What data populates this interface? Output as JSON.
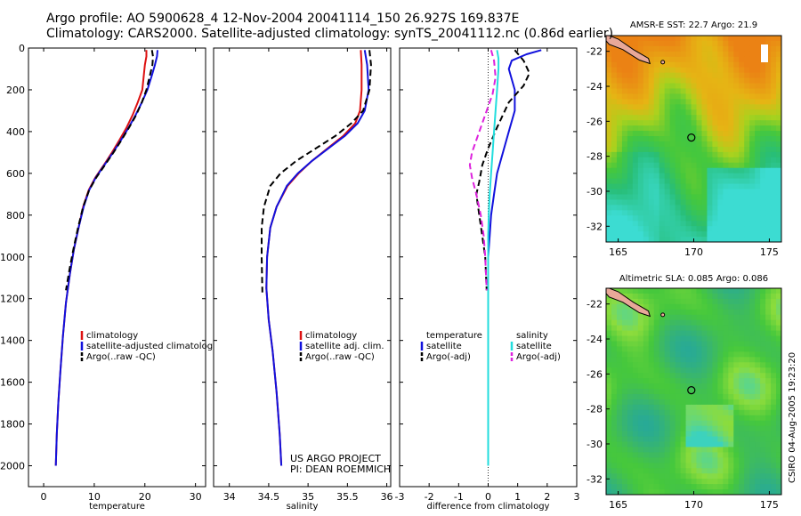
{
  "header": {
    "line1": "Argo profile: AO 5900628_4 12-Nov-2004 20041114_150 26.927S 169.837E",
    "line2": "Climatology: CARS2000. Satellite-adjusted climatology: synTS_20041112.nc (0.86d earlier)"
  },
  "credits": {
    "project": "US ARGO PROJECT",
    "pi": "PI: DEAN ROEMMICH",
    "stamp": "CSIRO 04-Aug-2005 19:23:20"
  },
  "colors": {
    "climatology": "#dd1111",
    "satellite": "#1111dd",
    "argo": "#000000",
    "salinity_sat": "#22dddd",
    "salinity_argo": "#dd22dd"
  },
  "chart_data": [
    {
      "id": "temperature",
      "type": "line",
      "xlabel": "temperature",
      "ylabel": "",
      "xlim": [
        -3,
        32
      ],
      "ylim": [
        0,
        2100
      ],
      "y_reversed": true,
      "xticks": [
        0,
        10,
        20,
        30
      ],
      "yticks": [
        0,
        200,
        400,
        600,
        800,
        1000,
        1200,
        1400,
        1600,
        1800,
        2000
      ],
      "legend": {
        "position": "lower-right",
        "entries": [
          "climatology",
          "satellite-adjusted climatology",
          "Argo(..raw -QC)"
        ]
      },
      "series": [
        {
          "name": "climatology",
          "color": "#dd1111",
          "dash": "solid",
          "x": [
            20.3,
            20.3,
            20.0,
            19.8,
            19.5,
            18.6,
            17.6,
            16.4,
            15.0,
            13.5,
            11.9,
            10.2,
            8.9,
            7.8,
            6.9,
            6.0,
            5.2,
            4.4,
            3.8,
            3.3,
            2.9,
            2.6,
            2.4
          ],
          "y": [
            10,
            40,
            80,
            130,
            200,
            260,
            320,
            380,
            440,
            500,
            560,
            620,
            680,
            760,
            860,
            960,
            1080,
            1220,
            1380,
            1550,
            1700,
            1850,
            2000
          ]
        },
        {
          "name": "satellite-adjusted climatology",
          "color": "#1111dd",
          "dash": "solid",
          "x": [
            22.5,
            22.4,
            22.0,
            21.4,
            20.5,
            19.4,
            18.2,
            16.8,
            15.3,
            13.7,
            12.0,
            10.3,
            9.0,
            7.9,
            6.9,
            6.0,
            5.2,
            4.4,
            3.8,
            3.3,
            2.9,
            2.6,
            2.4
          ],
          "y": [
            10,
            40,
            80,
            130,
            200,
            260,
            320,
            380,
            440,
            500,
            560,
            620,
            680,
            760,
            860,
            960,
            1080,
            1220,
            1380,
            1550,
            1700,
            1850,
            2000
          ]
        },
        {
          "name": "Argo(..raw -QC)",
          "color": "#000000",
          "dash": "dashed",
          "x": [
            21.4,
            21.6,
            21.5,
            21.0,
            20.3,
            19.4,
            18.3,
            16.9,
            15.4,
            13.8,
            12.1,
            10.4,
            9.0,
            7.8,
            6.8,
            5.9,
            5.1,
            4.4
          ],
          "y": [
            10,
            40,
            80,
            130,
            200,
            260,
            320,
            380,
            440,
            500,
            560,
            620,
            680,
            760,
            860,
            960,
            1060,
            1160
          ]
        }
      ]
    },
    {
      "id": "salinity",
      "type": "line",
      "xlabel": "salinity",
      "ylabel": "",
      "xlim": [
        33.8,
        36.05
      ],
      "ylim": [
        0,
        2100
      ],
      "y_reversed": true,
      "xticks": [
        34,
        34.5,
        35,
        35.5,
        36
      ],
      "xtick_labels": [
        "34",
        "34.5",
        "35",
        "35.5",
        "36"
      ],
      "legend": {
        "position": "lower-right",
        "entries": [
          "climatology",
          "satellite adj. clim.",
          "Argo(..raw -QC)"
        ]
      },
      "series": [
        {
          "name": "climatology",
          "color": "#dd1111",
          "dash": "solid",
          "x": [
            35.67,
            35.68,
            35.68,
            35.66,
            35.6,
            35.45,
            35.25,
            35.05,
            34.88,
            34.74,
            34.6,
            34.52,
            34.48,
            34.47,
            34.5,
            34.55,
            34.6,
            34.64,
            34.66
          ],
          "y": [
            10,
            80,
            200,
            300,
            360,
            420,
            480,
            540,
            600,
            660,
            760,
            860,
            1000,
            1150,
            1300,
            1450,
            1650,
            1850,
            2000
          ]
        },
        {
          "name": "satellite adj. clim.",
          "color": "#1111dd",
          "dash": "solid",
          "x": [
            35.72,
            35.75,
            35.77,
            35.72,
            35.63,
            35.47,
            35.26,
            35.05,
            34.87,
            34.73,
            34.6,
            34.52,
            34.48,
            34.47,
            34.5,
            34.55,
            34.6,
            34.64,
            34.66
          ],
          "y": [
            10,
            80,
            200,
            300,
            360,
            420,
            480,
            540,
            600,
            660,
            760,
            860,
            1000,
            1150,
            1300,
            1450,
            1650,
            1850,
            2000
          ]
        },
        {
          "name": "Argo(..raw -QC)",
          "color": "#000000",
          "dash": "dashed",
          "x": [
            35.78,
            35.8,
            35.78,
            35.7,
            35.55,
            35.35,
            35.1,
            34.85,
            34.65,
            34.52,
            34.44,
            34.41,
            34.41,
            34.42
          ],
          "y": [
            10,
            80,
            200,
            300,
            360,
            420,
            480,
            540,
            600,
            660,
            760,
            860,
            1000,
            1170
          ]
        }
      ]
    },
    {
      "id": "difference",
      "type": "line",
      "xlabel": "difference from climatology",
      "ylabel": "",
      "xlim": [
        -3,
        3
      ],
      "ylim": [
        0,
        2100
      ],
      "y_reversed": true,
      "xticks": [
        -3,
        -2,
        -1,
        0,
        1,
        2,
        3
      ],
      "legend": {
        "position": "lower-center",
        "entries": [
          "temperature",
          "satellite",
          "Argo(-adj)",
          "salinity",
          "satellite",
          "Argo(-adj)"
        ]
      },
      "series": [
        {
          "name": "temperature satellite",
          "color": "#1111dd",
          "dash": "solid",
          "x": [
            1.8,
            1.3,
            0.8,
            0.7,
            0.9,
            0.9,
            0.7,
            0.5,
            0.3,
            0.2,
            0.1,
            0.05,
            0.0,
            0.0,
            0.0,
            0.0,
            0.0
          ],
          "y": [
            10,
            30,
            60,
            100,
            200,
            300,
            400,
            500,
            600,
            700,
            800,
            900,
            1000,
            1200,
            1500,
            1800,
            2000
          ]
        },
        {
          "name": "temperature Argo(-adj)",
          "color": "#000000",
          "dash": "dashed",
          "x": [
            0.9,
            1.2,
            1.4,
            1.2,
            0.7,
            0.3,
            0.0,
            -0.2,
            -0.3,
            -0.4,
            -0.3,
            -0.2,
            -0.1,
            -0.05
          ],
          "y": [
            10,
            60,
            120,
            180,
            260,
            380,
            480,
            560,
            640,
            700,
            800,
            900,
            1000,
            1160
          ]
        },
        {
          "name": "salinity satellite",
          "color": "#22dddd",
          "dash": "solid",
          "x": [
            0.3,
            0.35,
            0.35,
            0.3,
            0.25,
            0.2,
            0.15,
            0.1,
            0.05,
            0.02,
            0.0,
            0.0,
            0.0,
            0.0,
            0.0,
            0.0
          ],
          "y": [
            10,
            50,
            100,
            200,
            300,
            400,
            500,
            600,
            700,
            800,
            900,
            1000,
            1200,
            1500,
            1800,
            2000
          ]
        },
        {
          "name": "salinity Argo(-adj)",
          "color": "#dd22dd",
          "dash": "dashed",
          "x": [
            0.1,
            0.2,
            0.25,
            0.15,
            -0.1,
            -0.35,
            -0.55,
            -0.62,
            -0.55,
            -0.4,
            -0.25,
            -0.15,
            -0.1,
            -0.05
          ],
          "y": [
            10,
            60,
            140,
            220,
            320,
            420,
            500,
            560,
            620,
            700,
            800,
            900,
            1000,
            1160
          ]
        }
      ]
    },
    {
      "id": "sst-map",
      "type": "heatmap",
      "title": "AMSR-E SST: 22.7 Argo: 21.9",
      "xlim": [
        164.2,
        175.8
      ],
      "ylim": [
        -32.9,
        -21.1
      ],
      "xticks": [
        165,
        170,
        175
      ],
      "yticks": [
        -22,
        -24,
        -26,
        -28,
        -30,
        -32
      ],
      "marker": {
        "lon": 169.84,
        "lat": -26.93
      }
    },
    {
      "id": "sla-map",
      "type": "heatmap",
      "title": "Altimetric SLA: 0.085 Argo: 0.086",
      "xlim": [
        164.2,
        175.8
      ],
      "ylim": [
        -32.9,
        -21.1
      ],
      "xticks": [
        165,
        170,
        175
      ],
      "yticks": [
        -22,
        -24,
        -26,
        -28,
        -30,
        -32
      ],
      "marker": {
        "lon": 169.84,
        "lat": -26.93
      }
    }
  ]
}
